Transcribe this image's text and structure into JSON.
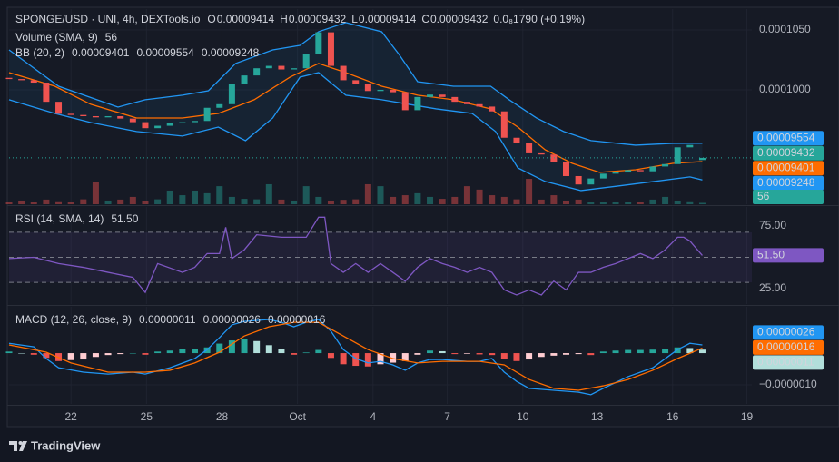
{
  "header": {
    "symbol": "SPONGE/USD · UNI, 4h, DEXTools.io",
    "ohlc": [
      {
        "key": "O",
        "value": "0.00009414"
      },
      {
        "key": "H",
        "value": "0.00009432"
      },
      {
        "key": "L",
        "value": "0.00009414"
      },
      {
        "key": "C",
        "value": "0.00009432"
      }
    ],
    "change": "0.0₈1790 (+0.19%)"
  },
  "chart_data": [
    {
      "type": "candlestick",
      "xlim": [
        0,
        60
      ],
      "xticks": [
        {
          "value": 5,
          "label": "22"
        },
        {
          "value": 11.1,
          "label": "25"
        },
        {
          "value": 17.2,
          "label": "28"
        },
        {
          "value": 23.3,
          "label": "Oct"
        },
        {
          "value": 29.4,
          "label": "4"
        },
        {
          "value": 35.4,
          "label": "7"
        },
        {
          "value": 41.5,
          "label": "10"
        },
        {
          "value": 47.5,
          "label": "13"
        },
        {
          "value": 53.6,
          "label": "16"
        },
        {
          "value": 59.6,
          "label": "19"
        }
      ],
      "ylim": [
        9.045e-05,
        0.00010674
      ],
      "yticks": [
        {
          "value": 0.0001,
          "label": "0.0001000"
        },
        {
          "value": 0.000105,
          "label": "0.0001050"
        }
      ],
      "grid": true,
      "candles": {
        "up_color": "#26a69a",
        "down_color": "#ef5350",
        "open": [
          0.000101,
          0.0001009,
          0.0001008,
          0.0001006,
          9.9e-05,
          9.8e-05,
          9.79e-05,
          9.78e-05,
          9.77e-05,
          9.78e-05,
          9.76e-05,
          9.73e-05,
          9.68e-05,
          9.7e-05,
          9.72e-05,
          9.73e-05,
          9.74e-05,
          9.85e-05,
          9.88e-05,
          0.0001005,
          0.0001012,
          0.0001018,
          0.000102,
          0.0001017,
          0.0001018,
          0.000103,
          0.0001048,
          0.000102,
          0.0001008,
          0.0001005,
          9.99e-05,
          0.0001,
          9.98e-05,
          9.83e-05,
          9.94e-05,
          9.96e-05,
          9.94e-05,
          9.9e-05,
          9.88e-05,
          9.86e-05,
          9.82e-05,
          9.6e-05,
          9.56e-05,
          9.47e-05,
          9.46e-05,
          9.4e-05,
          9.28e-05,
          9.21e-05,
          9.26e-05,
          9.3e-05,
          9.31e-05,
          9.33e-05,
          9.32e-05,
          9.36e-05,
          9.38e-05,
          9.52e-05,
          9.414e-05
        ],
        "close": [
          0.0001009,
          0.0001008,
          0.0001006,
          9.9e-05,
          9.8e-05,
          9.79e-05,
          9.78e-05,
          9.77e-05,
          9.78e-05,
          9.76e-05,
          9.73e-05,
          9.68e-05,
          9.7e-05,
          9.72e-05,
          9.73e-05,
          9.74e-05,
          9.85e-05,
          9.88e-05,
          0.0001005,
          0.0001012,
          0.0001018,
          0.000102,
          0.0001017,
          0.0001018,
          0.000103,
          0.0001048,
          0.000102,
          0.0001008,
          0.0001005,
          9.99e-05,
          0.0001,
          9.98e-05,
          9.83e-05,
          9.94e-05,
          9.96e-05,
          9.94e-05,
          9.9e-05,
          9.88e-05,
          9.86e-05,
          9.82e-05,
          9.6e-05,
          9.56e-05,
          9.47e-05,
          9.46e-05,
          9.4e-05,
          9.28e-05,
          9.21e-05,
          9.26e-05,
          9.3e-05,
          9.31e-05,
          9.33e-05,
          9.32e-05,
          9.36e-05,
          9.38e-05,
          9.52e-05,
          9.54e-05,
          9.432e-05
        ]
      },
      "last_price": {
        "value": 9.432e-05,
        "label": "0.00009432",
        "color": "#26a69a",
        "text_color": "#131722"
      },
      "volume": {
        "name": "Volume (SMA, 9)",
        "y2lim": [
          0,
          8000
        ],
        "values": [
          80,
          150,
          100,
          190,
          120,
          100,
          200,
          930,
          150,
          190,
          300,
          150,
          200,
          560,
          370,
          560,
          450,
          740,
          300,
          220,
          200,
          820,
          190,
          150,
          740,
          300,
          150,
          180,
          200,
          820,
          740,
          300,
          370,
          450,
          300,
          220,
          300,
          740,
          600,
          370,
          300,
          200,
          1040,
          190,
          370,
          150,
          190,
          100,
          100,
          80,
          100,
          80,
          190,
          300,
          150,
          120,
          56
        ],
        "readout": {
          "value": 56,
          "label": "56",
          "color": "#26a69a",
          "text_color": "#131722"
        }
      },
      "bands": {
        "name": "BB (20, 2)",
        "fill": "rgba(33,150,243,0.07)",
        "series": [
          {
            "color": "#ff6d00",
            "x": [
              0,
              3.7,
              6.6,
              10.3,
              14,
              16.9,
              19.8,
              22.7,
              25,
              27.2,
              30.1,
              33,
              35.9,
              38.9,
              41.1,
              43.3,
              45.5,
              47.7,
              50.6,
              53.6,
              56
            ],
            "values": [
              0.00010144,
              0.0001003,
              9.879e-05,
              9.765e-05,
              9.765e-05,
              9.803e-05,
              9.917e-05,
              0.00010106,
              0.0001022,
              0.00010144,
              0.0001003,
              9.955e-05,
              9.917e-05,
              9.841e-05,
              9.689e-05,
              9.5e-05,
              9.386e-05,
              9.311e-05,
              9.333e-05,
              9.386e-05,
              9.401e-05
            ],
            "readout": {
              "value": 9.401e-05,
              "label": "0.00009401",
              "color": "#ff6d00",
              "text_color": "#131722"
            }
          },
          {
            "color": "#2196f3",
            "x": [
              0,
              4,
              8.8,
              11,
              14,
              16.1,
              18.3,
              21.3,
              23.5,
              25,
              27.2,
              30.1,
              31.5,
              33,
              35.9,
              38.9,
              40.4,
              42.6,
              44.8,
              47,
              50.6,
              53.6,
              56
            ],
            "values": [
              0.00010333,
              0.0001003,
              9.856e-05,
              9.917e-05,
              9.955e-05,
              9.992e-05,
              0.0001022,
              0.00010333,
              0.00010371,
              0.00010485,
              0.00010561,
              0.00010485,
              0.00010295,
              0.00010068,
              0.0001003,
              0.0001003,
              9.917e-05,
              9.765e-05,
              9.652e-05,
              9.576e-05,
              9.538e-05,
              9.553e-05,
              9.554e-05
            ],
            "readout": {
              "value": 9.554e-05,
              "label": "0.00009554",
              "color": "#2196f3",
              "text_color": "#ffffff"
            }
          },
          {
            "color": "#2196f3",
            "x": [
              0,
              3.7,
              6.6,
              10.3,
              14,
              16.9,
              19.1,
              21.3,
              23.5,
              25,
              27.2,
              30.1,
              32.3,
              34.5,
              37.4,
              39.3,
              41.1,
              43.3,
              46.2,
              49.2,
              52.1,
              55,
              56
            ],
            "values": [
              9.917e-05,
              9.803e-05,
              9.727e-05,
              9.652e-05,
              9.614e-05,
              9.689e-05,
              9.576e-05,
              9.765e-05,
              0.00010106,
              0.00010144,
              9.955e-05,
              9.917e-05,
              9.879e-05,
              9.841e-05,
              9.803e-05,
              9.652e-05,
              9.348e-05,
              9.235e-05,
              9.159e-05,
              9.197e-05,
              9.235e-05,
              9.273e-05,
              9.248e-05
            ],
            "readout": {
              "value": 9.248e-05,
              "label": "0.00009248",
              "color": "#2196f3",
              "text_color": "#ffffff"
            }
          }
        ]
      }
    },
    {
      "type": "line",
      "title": "RSI (14, SMA, 14)",
      "ylim": [
        12.7,
        90.2
      ],
      "yticks": [
        {
          "value": 25,
          "label": "25.00"
        },
        {
          "value": 75,
          "label": "75.00"
        }
      ],
      "hlines": [
        30,
        50,
        70
      ],
      "band": [
        30,
        70
      ],
      "band_color": "rgba(126,87,194,0.10)",
      "series": [
        {
          "color": "#7e57c2",
          "x": [
            0,
            2,
            4,
            6,
            8,
            10,
            11,
            12,
            14,
            15,
            16,
            17,
            17.5,
            18,
            19,
            20,
            21,
            22,
            23,
            24,
            25,
            25.5,
            26,
            27,
            28,
            29,
            30,
            31,
            32,
            33,
            34,
            35,
            36,
            37,
            38,
            39,
            40,
            41,
            42,
            43,
            44,
            45,
            46,
            47,
            48,
            49,
            50,
            51,
            52,
            53,
            54,
            54.5,
            55,
            56
          ],
          "values": [
            49,
            50,
            45,
            42,
            38,
            34,
            22,
            45,
            38,
            42,
            53,
            53,
            74,
            49,
            56,
            68,
            67,
            66,
            66,
            66,
            82,
            82,
            45,
            38,
            45,
            38,
            45,
            38,
            31,
            42,
            49,
            45,
            42,
            38,
            42,
            38,
            24,
            20,
            24,
            20,
            31,
            24,
            38,
            38,
            42,
            45,
            49,
            53,
            49,
            56,
            66,
            66,
            63,
            51.5
          ],
          "readout": {
            "value": 51.5,
            "label": "51.50",
            "color": "#7e57c2",
            "text_color": "#ffffff"
          }
        }
      ]
    },
    {
      "type": "macd",
      "title": "MACD (12, 26, close, 9)",
      "ylim": [
        -1.6e-06,
        1.46e-06
      ],
      "yticks": [
        {
          "value": -1e-06,
          "label": "−0.0000010"
        }
      ],
      "histogram": {
        "colors": [
          "#26a69a",
          "#b2dfdb",
          "#ef5350",
          "#ffcdd2"
        ],
        "values": [
          5e-08,
          0,
          -5e-08,
          -1.5e-07,
          -2.5e-07,
          -2.2e-07,
          -2e-07,
          -1.2e-07,
          -6e-08,
          -3e-08,
          0,
          -5e-08,
          5e-08,
          8e-08,
          1.2e-07,
          1.4e-07,
          1.8e-07,
          3e-07,
          4e-07,
          4.6e-07,
          3.8e-07,
          2.5e-07,
          1.2e-07,
          -5e-08,
          2e-08,
          1e-07,
          -1.5e-07,
          -3.5e-07,
          -4e-07,
          -4.2e-07,
          -3.5e-07,
          -3e-07,
          -2.5e-07,
          -5e-08,
          8e-08,
          6e-08,
          -3e-08,
          -2e-08,
          -4e-08,
          -6e-08,
          -1.8e-07,
          -2.5e-07,
          -2e-07,
          -1.2e-07,
          -8e-08,
          -5e-08,
          -3e-08,
          -6e-08,
          5e-08,
          8e-08,
          1e-07,
          1e-07,
          1.1e-07,
          1.2e-07,
          1.8e-07,
          1.6e-07,
          1.1e-07
        ],
        "readout": {
          "value": 1.1e-07,
          "label": "0.00000011",
          "color": "#b2dfdb",
          "text_color": "#131722"
        }
      },
      "series": [
        {
          "color": "#2196f3",
          "x": [
            0,
            2,
            3,
            4,
            6,
            8,
            10,
            11,
            13,
            15,
            16,
            17,
            18,
            19,
            21,
            22,
            23,
            24,
            25,
            26,
            27,
            28,
            29,
            30,
            31,
            32,
            33,
            34,
            35,
            37,
            38,
            39,
            40,
            41,
            42,
            44,
            46,
            47,
            48,
            50,
            52,
            54,
            55,
            56
          ],
          "values": [
            3.1e-07,
            2e-07,
            -1.7e-07,
            -4.6e-07,
            -6e-07,
            -6.6e-07,
            -6e-07,
            -6.6e-07,
            -4.6e-07,
            -1.7e-07,
            1.1e-07,
            4.9e-07,
            8.9e-07,
            1e-06,
            1.06e-06,
            9.7e-07,
            8.3e-07,
            9.7e-07,
            1.06e-06,
            6.9e-07,
            1.1e-07,
            -1.7e-07,
            -3.1e-07,
            -2.6e-07,
            -3.7e-07,
            -5.4e-07,
            -3.1e-07,
            -2e-07,
            -2e-07,
            -2.6e-07,
            -2.6e-07,
            -1.7e-07,
            -6e-07,
            -8.9e-07,
            -1.11e-06,
            -1.17e-06,
            -1.23e-06,
            -1.31e-06,
            -1.11e-06,
            -7.4e-07,
            -4.6e-07,
            1.1e-07,
            3.1e-07,
            2.6e-07
          ],
          "readout": {
            "value": 2.6e-07,
            "label": "0.00000026",
            "color": "#2196f3",
            "text_color": "#ffffff"
          }
        },
        {
          "color": "#ff6d00",
          "x": [
            0,
            3,
            5,
            8,
            11,
            13,
            15,
            17,
            19,
            21,
            23,
            25,
            27,
            29,
            31,
            33,
            35,
            38,
            40,
            42,
            44,
            46,
            48,
            50,
            52,
            54,
            56
          ],
          "values": [
            2.6e-07,
            3e-08,
            -3.1e-07,
            -6e-07,
            -6e-07,
            -5.4e-07,
            -3.1e-07,
            3e-08,
            5.4e-07,
            8.3e-07,
            9.7e-07,
            9.7e-07,
            5.4e-07,
            1.1e-07,
            -1.7e-07,
            -3.1e-07,
            -2.6e-07,
            -2.6e-07,
            -3.7e-07,
            -8.3e-07,
            -1.11e-06,
            -1.17e-06,
            -1.03e-06,
            -8.3e-07,
            -5.4e-07,
            -1.7e-07,
            1.6e-07
          ],
          "readout": {
            "value": 1.6e-07,
            "label": "0.00000016",
            "color": "#ff6d00",
            "text_color": "#131722"
          }
        }
      ]
    }
  ],
  "footer": {
    "brand": "TradingView"
  }
}
